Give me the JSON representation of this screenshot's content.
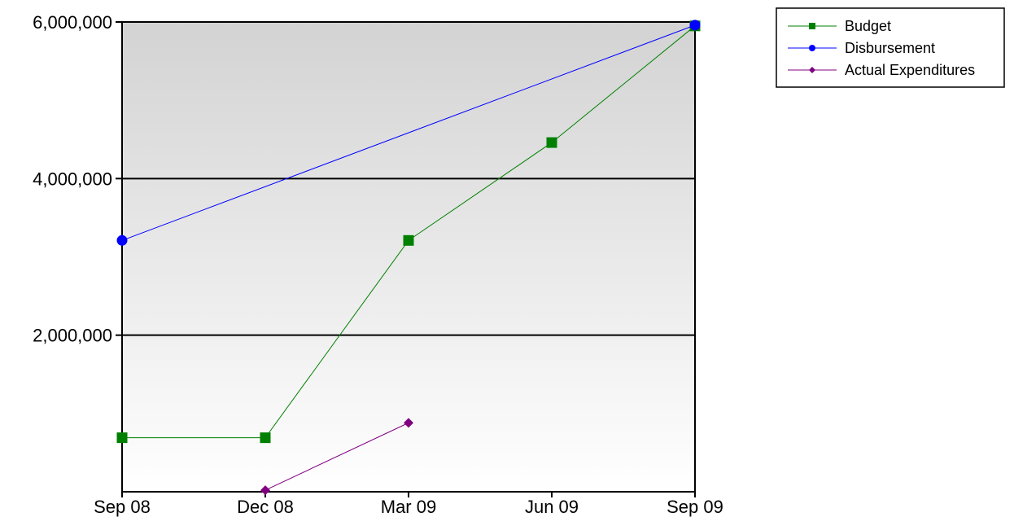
{
  "chart_data": {
    "type": "line",
    "categories": [
      "Sep 08",
      "Dec 08",
      "Mar 09",
      "Jun 09",
      "Sep 09"
    ],
    "y_ticks": [
      {
        "value": 2000000,
        "label": "2,000,000"
      },
      {
        "value": 4000000,
        "label": "4,000,000"
      },
      {
        "value": 6000000,
        "label": "6,000,000"
      }
    ],
    "ylim": [
      0,
      6000000
    ],
    "grid": true,
    "background": "vertical gradient, light grey at top to white at bottom",
    "legend_position": "top-right, outside plot",
    "series": [
      {
        "name": "Budget",
        "color": "#008000",
        "marker": "square",
        "values": [
          690000,
          690000,
          3210000,
          4460000,
          5950000
        ]
      },
      {
        "name": "Disbursement",
        "color": "#0000FF",
        "marker": "circle",
        "values": [
          3210000,
          null,
          null,
          null,
          5960000
        ]
      },
      {
        "name": "Actual Expenditures",
        "color": "#800080",
        "marker": "diamond",
        "values": [
          null,
          20000,
          880000,
          null,
          null
        ]
      }
    ]
  }
}
